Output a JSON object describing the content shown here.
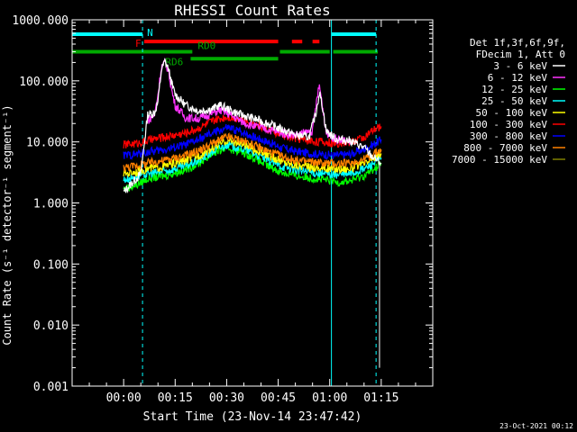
{
  "chart_data": {
    "type": "line",
    "title": "RHESSI Count Rates",
    "ylabel": "Count Rate (s⁻¹ detector⁻¹ segment⁻¹)",
    "xlabel": "Start Time (23-Nov-14 23:47:42)",
    "yscale": "log",
    "ylim": [
      0.001,
      1000
    ],
    "y_ticks": [
      {
        "value": 0.001,
        "label": "0.001"
      },
      {
        "value": 0.01,
        "label": "0.010"
      },
      {
        "value": 0.1,
        "label": "0.100"
      },
      {
        "value": 1,
        "label": "1.000"
      },
      {
        "value": 10,
        "label": "10.000"
      },
      {
        "value": 100,
        "label": "100.000"
      },
      {
        "value": 1000,
        "label": "1000.000"
      }
    ],
    "xlim_minutes": [
      -15,
      90
    ],
    "x_ticks": [
      {
        "value": 0,
        "label": "00:00"
      },
      {
        "value": 15,
        "label": "00:15"
      },
      {
        "value": 30,
        "label": "00:30"
      },
      {
        "value": 45,
        "label": "00:45"
      },
      {
        "value": 60,
        "label": "01:00"
      },
      {
        "value": 75,
        "label": "01:15"
      }
    ],
    "legend_header": [
      "Det 1f,3f,6f,9f,",
      "FDecim 1, Att 0"
    ],
    "legend_position": "right",
    "series": [
      {
        "name": "3 - 6 keV",
        "color": "#ffffff",
        "points": [
          [
            0,
            1.5
          ],
          [
            2,
            2
          ],
          [
            5,
            3
          ],
          [
            7,
            28
          ],
          [
            9,
            30
          ],
          [
            10,
            45
          ],
          [
            11,
            150
          ],
          [
            12,
            210
          ],
          [
            13,
            160
          ],
          [
            14,
            90
          ],
          [
            15,
            60
          ],
          [
            18,
            40
          ],
          [
            22,
            32
          ],
          [
            26,
            35
          ],
          [
            28,
            40
          ],
          [
            30,
            35
          ],
          [
            34,
            28
          ],
          [
            38,
            24
          ],
          [
            42,
            20
          ],
          [
            46,
            16
          ],
          [
            50,
            13
          ],
          [
            54,
            12
          ],
          [
            56,
            30
          ],
          [
            57,
            65
          ],
          [
            58,
            35
          ],
          [
            59,
            15
          ],
          [
            62,
            11
          ],
          [
            66,
            10.5
          ],
          [
            70,
            8
          ],
          [
            72,
            6
          ],
          [
            75,
            4.5
          ]
        ]
      },
      {
        "name": "6 - 12 keV",
        "color": "#ff33ff",
        "points": [
          [
            7,
            22
          ],
          [
            9,
            28
          ],
          [
            10,
            60
          ],
          [
            11,
            170
          ],
          [
            12,
            200
          ],
          [
            13,
            150
          ],
          [
            14,
            70
          ],
          [
            15,
            40
          ],
          [
            18,
            25
          ],
          [
            22,
            24
          ],
          [
            26,
            30
          ],
          [
            28,
            33
          ],
          [
            30,
            30
          ],
          [
            34,
            22
          ],
          [
            38,
            18
          ],
          [
            42,
            16
          ],
          [
            46,
            14
          ],
          [
            50,
            13
          ],
          [
            55,
            15
          ],
          [
            56,
            40
          ],
          [
            57,
            85
          ],
          [
            58,
            35
          ],
          [
            59,
            14
          ],
          [
            62,
            11
          ],
          [
            66,
            10
          ]
        ]
      },
      {
        "name": "12 - 25 keV",
        "color": "#00ff00",
        "points": [
          [
            0,
            1.7
          ],
          [
            4,
            2
          ],
          [
            7,
            2.5
          ],
          [
            12,
            2.8
          ],
          [
            18,
            3.5
          ],
          [
            22,
            4.5
          ],
          [
            26,
            6.5
          ],
          [
            30,
            8
          ],
          [
            34,
            7
          ],
          [
            38,
            5.5
          ],
          [
            42,
            4
          ],
          [
            46,
            3.2
          ],
          [
            50,
            2.8
          ],
          [
            54,
            2.6
          ],
          [
            58,
            2.4
          ],
          [
            62,
            2.2
          ],
          [
            66,
            2.3
          ],
          [
            70,
            2.8
          ],
          [
            74,
            4
          ],
          [
            75,
            4.5
          ]
        ]
      },
      {
        "name": "25 - 50 keV",
        "color": "#00ffff",
        "points": [
          [
            0,
            2.4
          ],
          [
            4,
            2.7
          ],
          [
            7,
            3
          ],
          [
            12,
            3.3
          ],
          [
            18,
            4
          ],
          [
            22,
            5
          ],
          [
            26,
            7
          ],
          [
            30,
            9
          ],
          [
            34,
            8
          ],
          [
            38,
            6.5
          ],
          [
            42,
            5
          ],
          [
            46,
            4
          ],
          [
            50,
            3.5
          ],
          [
            54,
            3.2
          ],
          [
            58,
            3
          ],
          [
            62,
            2.9
          ],
          [
            66,
            3
          ],
          [
            70,
            3.6
          ],
          [
            74,
            5
          ],
          [
            75,
            5.5
          ]
        ]
      },
      {
        "name": "50 - 100 keV",
        "color": "#ffff00",
        "points": [
          [
            0,
            3
          ],
          [
            4,
            3.3
          ],
          [
            7,
            3.6
          ],
          [
            12,
            4
          ],
          [
            18,
            5
          ],
          [
            22,
            6
          ],
          [
            26,
            8
          ],
          [
            30,
            10.5
          ],
          [
            34,
            9.5
          ],
          [
            38,
            7.5
          ],
          [
            42,
            6
          ],
          [
            46,
            4.8
          ],
          [
            50,
            4.2
          ],
          [
            54,
            3.9
          ],
          [
            58,
            3.7
          ],
          [
            62,
            3.6
          ],
          [
            66,
            3.7
          ],
          [
            70,
            4.3
          ],
          [
            74,
            6
          ],
          [
            75,
            6.5
          ]
        ]
      },
      {
        "name": "100 - 300 keV",
        "color": "#ff0000",
        "points": [
          [
            0,
            9
          ],
          [
            4,
            9.5
          ],
          [
            7,
            10.5
          ],
          [
            12,
            12
          ],
          [
            18,
            14
          ],
          [
            22,
            17
          ],
          [
            26,
            22
          ],
          [
            30,
            26
          ],
          [
            34,
            24
          ],
          [
            38,
            20
          ],
          [
            42,
            16
          ],
          [
            46,
            13
          ],
          [
            50,
            11.5
          ],
          [
            54,
            10.5
          ],
          [
            58,
            10
          ],
          [
            62,
            9.5
          ],
          [
            66,
            10
          ],
          [
            70,
            12
          ],
          [
            74,
            17
          ],
          [
            75,
            18
          ]
        ]
      },
      {
        "name": "300 - 800 keV",
        "color": "#0000ff",
        "points": [
          [
            0,
            6
          ],
          [
            4,
            6.3
          ],
          [
            7,
            6.8
          ],
          [
            12,
            7.5
          ],
          [
            18,
            9
          ],
          [
            22,
            11
          ],
          [
            26,
            14
          ],
          [
            30,
            17
          ],
          [
            34,
            15
          ],
          [
            38,
            12
          ],
          [
            42,
            10
          ],
          [
            46,
            8
          ],
          [
            50,
            7
          ],
          [
            54,
            6.5
          ],
          [
            58,
            6.2
          ],
          [
            62,
            6
          ],
          [
            66,
            6.3
          ],
          [
            70,
            7.5
          ],
          [
            74,
            10
          ],
          [
            75,
            11
          ]
        ]
      },
      {
        "name": "800 - 7000 keV",
        "color": "#ff8000",
        "points": [
          [
            0,
            3.8
          ],
          [
            4,
            4.1
          ],
          [
            7,
            4.5
          ],
          [
            12,
            5
          ],
          [
            18,
            6
          ],
          [
            22,
            7.2
          ],
          [
            26,
            9.5
          ],
          [
            30,
            12
          ],
          [
            34,
            10.8
          ],
          [
            38,
            8.8
          ],
          [
            42,
            7
          ],
          [
            46,
            5.8
          ],
          [
            50,
            5
          ],
          [
            54,
            4.7
          ],
          [
            58,
            4.5
          ],
          [
            62,
            4.4
          ],
          [
            66,
            4.5
          ],
          [
            70,
            5.2
          ],
          [
            74,
            7
          ],
          [
            75,
            7.5
          ]
        ]
      },
      {
        "name": "7000 - 15000 keV",
        "color": "#808000",
        "points": []
      }
    ],
    "annotations": {
      "flag_bars": [
        {
          "label": "N",
          "color": "#00ffff",
          "segments": [
            [
              -15,
              5.5
            ],
            [
              60.5,
              73.5
            ]
          ],
          "value": 580
        },
        {
          "label": "F",
          "color": "#ff0000",
          "segments": [
            [
              6,
              45
            ],
            [
              49,
              52
            ],
            [
              55,
              57
            ]
          ],
          "value": 440
        },
        {
          "label": "RD0",
          "color": "#00aa00",
          "segments": [
            [
              -15,
              20
            ],
            [
              45.5,
              60
            ],
            [
              61,
              74
            ]
          ],
          "value": 300
        },
        {
          "label": "RD6",
          "color": "#00aa00",
          "segments": [
            [
              19.5,
              45
            ]
          ],
          "value": 230
        }
      ],
      "vlines_solid": [
        -15,
        60.5
      ],
      "vlines_dashed": [
        5.5,
        73.5
      ]
    }
  },
  "footer": {
    "timestamp": "23-Oct-2021 00:12"
  }
}
